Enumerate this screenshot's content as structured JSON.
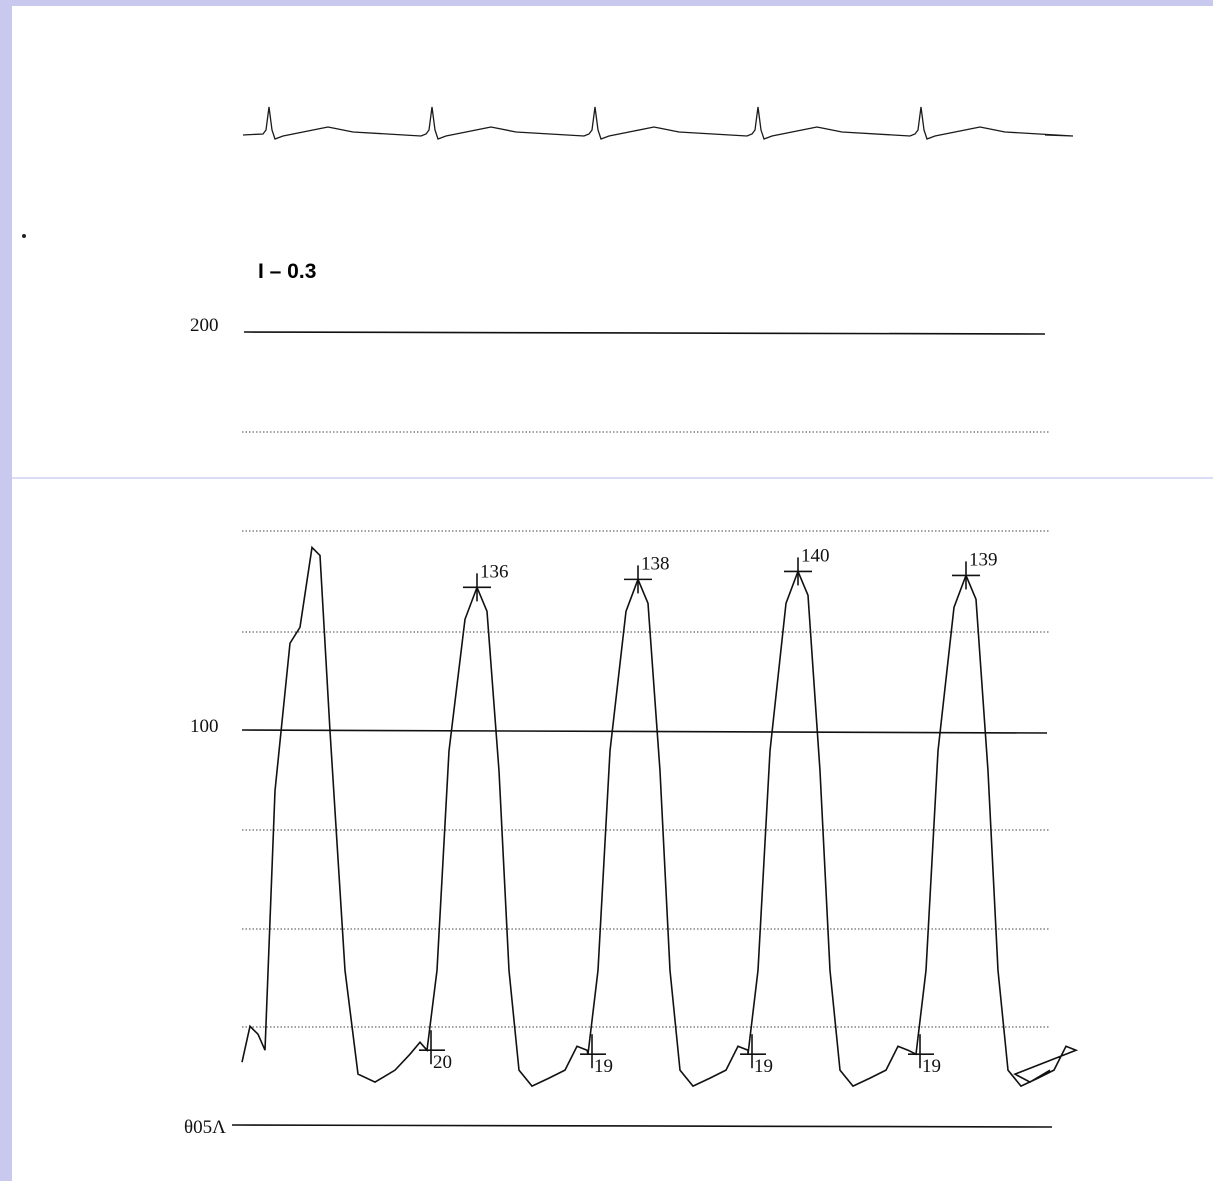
{
  "header": {
    "lead_label": "I – 0.3"
  },
  "chart_data": {
    "type": "line",
    "ecg": {
      "beats": 5
    },
    "pressure": {
      "grid": true,
      "axis_labels": {
        "top": "200",
        "mid": "100",
        "bottom": "θ05Λ"
      },
      "ylim": [
        5,
        200
      ],
      "peaks": [
        {
          "value": "136"
        },
        {
          "value": "138"
        },
        {
          "value": "140"
        },
        {
          "value": "139"
        }
      ],
      "troughs": [
        {
          "value": "20"
        },
        {
          "value": "19"
        },
        {
          "value": "19"
        },
        {
          "value": "19"
        }
      ]
    }
  }
}
